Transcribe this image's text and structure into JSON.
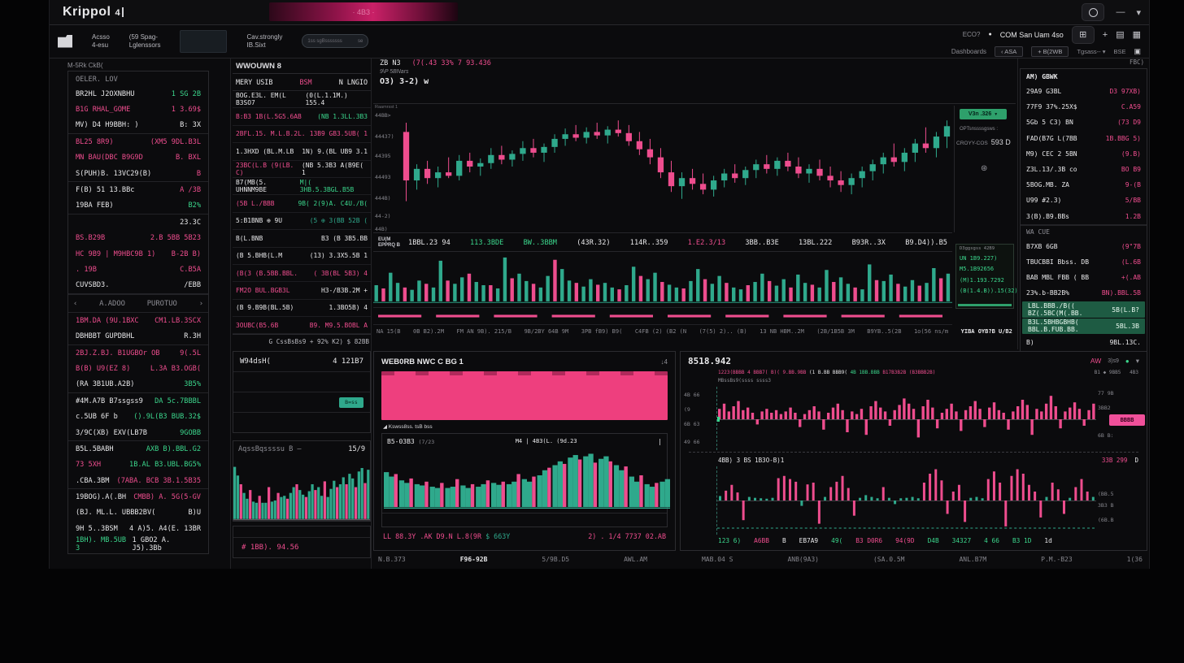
{
  "colors": {
    "pink": "#ee4d8e",
    "teal": "#2fa98c",
    "green": "#3bd68c",
    "white": "#e8e8ea",
    "gray": "#8d8d94",
    "green_tag_bg": "#2ea06b",
    "green_row_bg": "#1e5b43",
    "pink_block": "#ee3f7e"
  },
  "topbar": {
    "logo": "Krippol",
    "logo_badge": "4",
    "banner_text": "· 4B3 ·",
    "window_minimize": "—",
    "window_chevron": "▾"
  },
  "toolbar": {
    "items": [
      {
        "l1": "Acsso",
        "l2": "4-esu"
      },
      {
        "l1": "(59 Spag-",
        "l2": "Lglenssors"
      },
      {
        "l1": "Cav.strongly",
        "l2": "IB.Sixt"
      }
    ],
    "pill_text": "1ss sgBsssssss",
    "pill_right": "se",
    "right_row1": {
      "label_dim": "ECO?",
      "dot": "●",
      "label": "COM San Uam 4so",
      "icons": [
        "⊞",
        "+",
        "▤",
        "▦"
      ]
    },
    "right_row2": {
      "label": "Dashboards",
      "buttons": [
        "‹ ASA",
        "+ B(2WB"
      ],
      "dropdown": "Tgsass--",
      "dropdown_icon": "▾",
      "extra": "BSE",
      "icon": "▣"
    }
  },
  "watchlist": {
    "header": "M-5Rk CkB(",
    "panel_title": "OELER. LOV",
    "rows": [
      {
        "l": "BR2HL J2OXNBHU",
        "lc": "w",
        "v": "1 SG 2B",
        "vc": "g"
      },
      {
        "l": "B1G RHAL_GOME",
        "lc": "p",
        "v": "1 3.69$",
        "vc": "p"
      },
      {
        "l": "MV) D4 H9BBH: )",
        "lc": "w",
        "v": "B: 3X",
        "vc": "w",
        "div": true
      },
      {
        "l": "BL25 8R9)",
        "lc": "p",
        "v": "(XM5 9DL.B3L",
        "vc": "p"
      },
      {
        "l": "MN BAU(DBC B9G9D",
        "lc": "p",
        "v": "B. BXL",
        "vc": "p"
      },
      {
        "l": "S(PUH)B. 13VC29(B)",
        "lc": "w",
        "v": "B",
        "vc": "p",
        "div": true
      },
      {
        "l": "F(B) 51 13.BBc",
        "lc": "w",
        "v": "A /3B",
        "vc": "p"
      },
      {
        "l": "19BA FEB)",
        "lc": "w",
        "v": "B2%",
        "vc": "g",
        "div": true
      },
      {
        "l": "",
        "lc": "w",
        "v": "23.3C",
        "vc": "w"
      },
      {
        "l": "BS.B29B",
        "lc": "p",
        "v": "2.B 5BB 5B23",
        "vc": "p"
      },
      {
        "l": "HC 9B9 | M9HBC9B 1)",
        "lc": "p",
        "v": "B-2B B)",
        "vc": "p"
      },
      {
        "l": ". 19B",
        "lc": "p",
        "v": "C.B5A",
        "vc": "p"
      },
      {
        "l": "CUVSBD3.",
        "lc": "w",
        "v": "/EBB",
        "vc": "w",
        "div": true
      },
      {
        "section": [
          "A.ADOO",
          "PUROTUO"
        ]
      },
      {
        "l": "1BM.DA (9U.1BXC",
        "lc": "p",
        "v": "CM1.LB.3SCX",
        "vc": "p"
      },
      {
        "l": "DBHBBT GUPDBHL",
        "lc": "w",
        "v": "R.3H",
        "vc": "w",
        "div": true
      },
      {
        "l": "2BJ.Z.BJ. B1UGBOr OB",
        "lc": "p",
        "v": "9(.5L",
        "vc": "p"
      },
      {
        "l": "B(B) U9(EZ 8)",
        "lc": "p",
        "v": "L.3A B3.OGB(",
        "vc": "p"
      },
      {
        "l": "(RA 3B1UB.A2B)",
        "lc": "w",
        "v": "3B5%",
        "vc": "g",
        "div": true
      },
      {
        "l": "#4M.A7B B7ssgss9",
        "lc": "w",
        "v": "DA 5c.7BBBL",
        "vc": "g"
      },
      {
        "l": "c.5UB 6F b",
        "lc": "w",
        "v": "().9L(B3 BUB.32$",
        "vc": "g"
      },
      {
        "l": "3/9C(XB) EXV(LB7B",
        "lc": "w",
        "v": "9GOBB",
        "vc": "g",
        "div": true
      },
      {
        "l": "B5L.5BABH",
        "lc": "w",
        "v": "AXB B).BBL.G2",
        "vc": "g"
      },
      {
        "l": "73 5XH",
        "lc": "p",
        "v": "1B.AL B3.UBL.BG5%",
        "vc": "g"
      },
      {
        "l": ".CBA.3BM",
        "lc": "w",
        "v": "(7ABA. BCB 3B.1.5B35",
        "vc": "p",
        "div": true
      },
      {
        "l": "19BOG).A(.BH",
        "lc": "w",
        "v": "CMBB) A. 5G(5-GV",
        "vc": "p"
      },
      {
        "l": "(BJ. ML.L. UBBB2BV(",
        "lc": "w",
        "v": "B)U",
        "vc": "w"
      },
      {
        "l": "9H 5..3BSM",
        "lc": "w",
        "v": "4 A)5. A4(E. 13BR",
        "vc": "w"
      },
      {
        "l": "1BH). MB.5UB 3",
        "lc": "g",
        "v": "1 GBO2 A. J5).3Bb",
        "vc": "w"
      }
    ]
  },
  "orderbook": {
    "title": "WWOUWN 8",
    "col_header": {
      "left": "MERY USIB",
      "mid": "BSM",
      "right": "N LNGIO"
    },
    "rows": [
      {
        "l": "BOG.E3L. EM(L B3SO7",
        "lc": "w",
        "v": "(0(L.1.1M.) 155.4",
        "vc": "w"
      },
      {
        "l": "B:B3 1B(L.5G5.6AB",
        "lc": "p",
        "v": "(NB 1.3LL.3B3",
        "vc": "g"
      },
      {
        "l": "2BFL.15. M.L.B.2L.",
        "lc": "p",
        "v": "13B9 GB3.5UB( 1",
        "vc": "p"
      },
      {
        "l": "1.3HXD (BL.M.LB",
        "lc": "w",
        "v": "1N) 9.(BL UB9 3.1",
        "vc": "w"
      },
      {
        "l": "23BC(L.B (9(LB. C)",
        "lc": "p",
        "v": "(NB 5.3B3 A(B9E( 1",
        "vc": "w"
      },
      {
        "l": "B7(MB(5. UHNNM9BE",
        "lc": "w",
        "v": "M|( 3HB.5.3BGL.B5B",
        "vc": "g"
      },
      {
        "l": "(5B   L./BBB",
        "lc": "p",
        "v": "9B( 2(9)A. C4U./B(",
        "vc": "g"
      },
      {
        "l": "5:B1BNB ⊕ 9U",
        "lc": "w",
        "v": "(5 ⊕ 3(BB 52B (",
        "vc": "t"
      },
      {
        "l": "B(L.BNB",
        "lc": "w",
        "v": "B3 (B 3B5.BB",
        "vc": "w"
      },
      {
        "l": "(B 5.BHB(L.M",
        "lc": "w",
        "v": "(13) 3.3X5.5B 1",
        "vc": "w"
      },
      {
        "l": "(B(3 (B.5BB.BBL.",
        "lc": "p",
        "v": "( 3B(BL 5B3) 4",
        "vc": "p"
      },
      {
        "l": "FM2O BUL.BGB3L",
        "lc": "p",
        "v": "H3-/B3B.2M +",
        "vc": "w"
      },
      {
        "l": "(B 9.B9B(BL.5B)",
        "lc": "w",
        "v": "1.3BO5B) 4",
        "vc": "w"
      },
      {
        "l": "3OUBC(B5.6B",
        "lc": "p",
        "v": "B9. M9.5.BOBL A",
        "vc": "p"
      }
    ],
    "footnote": "G CssBsBs9 + 92% K2) $ 82BB"
  },
  "order_form": {
    "title": "W94dsH(",
    "title_value": "4 121B7",
    "button": "B=ss"
  },
  "depth_panel": {
    "title": "AqssBqssssu B –",
    "value": "15/9",
    "footer": "# 1BB). 94.56",
    "bars": [
      90,
      75,
      -60,
      45,
      35,
      -50,
      30,
      28,
      -40,
      28,
      28,
      -55,
      30,
      32,
      -45,
      38,
      40,
      -35,
      45,
      55,
      -60,
      50,
      42,
      -38,
      48,
      60,
      -50,
      55,
      40,
      -65,
      38,
      52,
      66,
      -55,
      60,
      72,
      -60,
      78,
      70,
      -55,
      82,
      88,
      -62,
      85
    ]
  },
  "main_chart": {
    "symbol": "ZB N3",
    "change_pink": "(7(.43 33%  7 93.436",
    "subtitle": "9\\P 5BNars",
    "ohlc": "O3)   3-2) w",
    "tool_label": "Raamrsst 1",
    "price_labels": [
      "44BB>",
      "44437)",
      "44395",
      "44493",
      "444B)",
      "44-2)",
      "44B)"
    ],
    "candles": [
      [
        80,
        88,
        20,
        38
      ],
      [
        38,
        52,
        30,
        48
      ],
      [
        48,
        55,
        35,
        40
      ],
      [
        40,
        50,
        32,
        45
      ],
      [
        45,
        58,
        40,
        42
      ],
      [
        42,
        60,
        38,
        55
      ],
      [
        55,
        62,
        45,
        50
      ],
      [
        50,
        57,
        42,
        53
      ],
      [
        53,
        66,
        48,
        60
      ],
      [
        60,
        68,
        52,
        56
      ],
      [
        56,
        64,
        50,
        61
      ],
      [
        61,
        72,
        55,
        66
      ],
      [
        66,
        74,
        58,
        62
      ],
      [
        62,
        70,
        54,
        67
      ],
      [
        67,
        78,
        62,
        74
      ],
      [
        74,
        83,
        68,
        78
      ],
      [
        78,
        86,
        72,
        75
      ],
      [
        75,
        84,
        70,
        80
      ],
      [
        80,
        88,
        74,
        77
      ],
      [
        77,
        85,
        70,
        82
      ],
      [
        82,
        90,
        76,
        79
      ],
      [
        79,
        86,
        68,
        72
      ],
      [
        72,
        80,
        60,
        65
      ],
      [
        65,
        74,
        52,
        58
      ],
      [
        58,
        66,
        40,
        45
      ],
      [
        45,
        55,
        28,
        33
      ],
      [
        33,
        45,
        22,
        40
      ],
      [
        40,
        48,
        30,
        35
      ],
      [
        35,
        44,
        26,
        30
      ],
      [
        30,
        42,
        24,
        38
      ],
      [
        38,
        48,
        32,
        44
      ],
      [
        44,
        52,
        36,
        40
      ],
      [
        40,
        50,
        34,
        47
      ],
      [
        47,
        56,
        40,
        52
      ],
      [
        52,
        60,
        44,
        48
      ],
      [
        48,
        58,
        42,
        55
      ],
      [
        55,
        62,
        46,
        50
      ],
      [
        50,
        58,
        40,
        44
      ],
      [
        44,
        52,
        36,
        48
      ],
      [
        48,
        56,
        38,
        42
      ],
      [
        42,
        50,
        32,
        38
      ],
      [
        38,
        46,
        28,
        34
      ],
      [
        34,
        44,
        26,
        40
      ],
      [
        40,
        50,
        32,
        46
      ],
      [
        46,
        56,
        38,
        52
      ],
      [
        52,
        62,
        44,
        58
      ],
      [
        58,
        70,
        50,
        54
      ],
      [
        54,
        66,
        46,
        62
      ],
      [
        62,
        74,
        54,
        70
      ],
      [
        70,
        84,
        62,
        66
      ],
      [
        66,
        80,
        58,
        76
      ],
      [
        76,
        90,
        66,
        85
      ]
    ],
    "scale": {
      "tag": "V3n .326",
      "tag_icon": "▼",
      "note1": "OPTsnssssgsws :",
      "note2": "CROYY-COS",
      "note2_value": "593 D",
      "icon": "⊛"
    },
    "stats": {
      "label1": "EU(M",
      "label2": "EPPRQ B",
      "values": [
        {
          "t": "1BBL.23 94",
          "c": "w"
        },
        {
          "t": "113.3BDE",
          "c": "g"
        },
        {
          "t": "BW..3BBM",
          "c": "g"
        },
        {
          "t": "(43R.32)",
          "c": "w"
        },
        {
          "t": "114R..359",
          "c": "w"
        },
        {
          "t": "1.E2.3/13",
          "c": "p"
        },
        {
          "t": "3BB..B3E",
          "c": "w"
        },
        {
          "t": "13BL.222",
          "c": "w"
        },
        {
          "t": "B93R..3X",
          "c": "w"
        },
        {
          "t": "B9.D4)).B5",
          "c": "w"
        }
      ]
    },
    "volume": {
      "bars": [
        35,
        -28,
        62,
        40,
        -30,
        25,
        45,
        -38,
        30,
        88,
        -45,
        38,
        52,
        -60,
        42,
        35,
        -35,
        28,
        95,
        -50,
        60,
        44,
        -38,
        30,
        55,
        -90,
        70,
        45,
        -40,
        32,
        48,
        -36,
        40,
        30,
        -26,
        35,
        75,
        -55,
        48,
        62,
        -42,
        36,
        30,
        -28,
        44,
        70,
        -48,
        38,
        55,
        -40,
        30,
        26,
        -35,
        42,
        60,
        -44,
        34,
        48,
        -30,
        58,
        40,
        -36,
        30,
        68,
        -42,
        52,
        38,
        -30,
        26,
        80,
        -46,
        44,
        58,
        -38,
        32,
        46,
        -34,
        40,
        72,
        -50,
        60
      ]
    },
    "volume_box": {
      "header": "D3ggsgss 42B9",
      "rows": [
        "UN 1B9.227)",
        "M5.1B92656",
        "(M)1.193.7292",
        "(B(1.4.B)).15(32)"
      ]
    },
    "signal": {
      "segments": 10
    },
    "x_labels": [
      "NA 15(B",
      "0B B2).2M",
      "FM AN 9B). 215/B",
      "9B/2BY 64B 9M",
      "3PB fB9) B9(",
      "C4FB (2) (B2 (N",
      "(7(5) 2).. (B)",
      "13 NB HBM..2M",
      "(2B/1B5B 3M",
      "B9YB..5(2B",
      "1o(56 ns/m",
      "YIBA OYB?B U/B2"
    ]
  },
  "right_panel": {
    "corner": "FBC)",
    "title": "AM) GBWK",
    "rows": [
      {
        "l": "29A9 G3BL",
        "v": "D3 97XB)"
      },
      {
        "l": "77F9 37%.25X$",
        "v": "C.A59"
      },
      {
        "l": "5Gb 5 C3) BN",
        "v": "(73 D9"
      },
      {
        "l": "FAD(B7G L(7BB",
        "v": "1B.BBG 5)"
      },
      {
        "l": "M9) CEC 2 5BN",
        "v": "(9.B)"
      },
      {
        "l": "Z3L.13/.3B co",
        "v": "BO B9"
      },
      {
        "l": "5BOG.MB. ZA",
        "v": "9-(B"
      },
      {
        "l": "U99 #2.3)",
        "v": "5/BB"
      },
      {
        "l": "3(B).B9.BBs",
        "v": "1.2B",
        "div": true
      },
      {
        "section": "WA CUE"
      },
      {
        "l": "B7XB 6GB",
        "v": "(9\"7B"
      },
      {
        "l": "TBUCBBI Bbss. DB",
        "v": "(L.6B"
      },
      {
        "l": "BAB MBL FBB ( BB",
        "v": "+(.AB"
      },
      {
        "l": "23%.b-BB2B%",
        "v": "BN).BBL.5B"
      },
      {
        "green": true,
        "l": "LBL.BBB./B(( BZ(.5BC(M(.BB.",
        "v": "5B(L.B?"
      },
      {
        "green": true,
        "l": "B3L.5BHBGBHB( BBL.B.FUB.BB.",
        "v": "5BL.3B"
      },
      {
        "l": "B)",
        "v": "9BL.13C.",
        "vc": "w"
      }
    ]
  },
  "bottom_middle": {
    "title": "WEB0RB NWC C BG 1",
    "corner": "↓4",
    "block_label": "◢ Kswss8ss. tsB bss",
    "sub": {
      "left1": "B5-03B3",
      "left2": "(7/23",
      "right": "M4 |  4B3(L.  (9d.23",
      "bar": "|",
      "bars": [
        55,
        48,
        -52,
        42,
        38,
        -45,
        36,
        34,
        -40,
        32,
        30,
        -38,
        30,
        32,
        -44,
        34,
        30,
        -36,
        32,
        36,
        -42,
        38,
        35,
        -40,
        36,
        40,
        -52,
        44,
        40,
        -48,
        50,
        58,
        -62,
        66,
        72,
        -68,
        78,
        82,
        -75,
        80,
        84,
        -70,
        76,
        80,
        -72,
        66,
        58,
        -64,
        48,
        40,
        -50,
        36,
        32,
        -38,
        40,
        44
      ]
    },
    "footer_left": "LL 88.3Y .AK D9.N L.8(9R",
    "footer_tag": "$ 663Y",
    "footer_right": "2) . 1/4 7737 02.AB"
  },
  "bottom_right": {
    "title": "8518.942",
    "corner": {
      "pink": "AW",
      "dim": "3)s9",
      "dot": "●",
      "chev": "▾"
    },
    "legend": [
      {
        "t": "1223(BBBB 4 BBB7( B)( 9.BB.9BB ",
        "c": "p"
      },
      {
        "t": "(1 B.BB BBB9( ",
        "c": "w"
      },
      {
        "t": "4B 1BB.BBB ",
        "c": "g"
      },
      {
        "t": "B17B3B2B (B3BBB2B)",
        "c": "p"
      }
    ],
    "legend_right": "B1  ◆  9BB5",
    "legend_far": "4B3",
    "legend2": "MBssBs9(ssss ssss3",
    "osc": {
      "left_labels": [
        "4B 66",
        "(9",
        "6B 63",
        "49 66"
      ],
      "right_labels": [
        "77 9B",
        "3BB2"
      ],
      "tag": "BBBB",
      "right_label_low": "6B B:",
      "bars": [
        8,
        12,
        6,
        10,
        14,
        7,
        9,
        5,
        -4,
        6,
        8,
        5,
        7,
        4,
        6,
        9,
        5,
        -6,
        4,
        7,
        10,
        6,
        -8,
        5,
        9,
        12,
        7,
        -10,
        6,
        4,
        8,
        -12,
        10,
        14,
        9,
        6,
        -5,
        7,
        11,
        16,
        12,
        8,
        -14,
        10,
        15,
        9,
        -7,
        5,
        8,
        12,
        6,
        -9,
        7,
        10,
        14,
        8,
        -6,
        9,
        13,
        7,
        5,
        -8,
        6,
        10,
        15,
        11,
        -12,
        8,
        6,
        12,
        18,
        10,
        -7,
        6,
        9,
        13,
        8,
        -5,
        7,
        12
      ]
    },
    "hist": {
      "header_left": "4BB) 3 BS 1B3O-B)1",
      "header_right": "33B  299",
      "header_icon": "D",
      "right_labels": [
        "(BB.5",
        "3B3 B",
        "(6B.B"
      ],
      "bars": [
        10,
        22,
        35,
        18,
        -44,
        8,
        6,
        5,
        4,
        6,
        50,
        55,
        48,
        42,
        -12,
        36,
        40,
        -52,
        8,
        30,
        42,
        55,
        28,
        -34,
        6,
        12,
        8,
        5,
        30,
        6,
        -8,
        5,
        6,
        8,
        5,
        40,
        60,
        70,
        45,
        -30,
        20,
        35,
        -48,
        6,
        8,
        5,
        48,
        65,
        40,
        -58,
        55,
        70,
        60,
        35,
        20,
        -38,
        8,
        40,
        25,
        -30,
        6,
        30,
        48,
        20,
        8
      ]
    },
    "footer": [
      {
        "t": "123 6)",
        "c": "g"
      },
      {
        "t": "A6BB",
        "c": "p"
      },
      {
        "t": "B",
        "c": "w"
      },
      {
        "t": "EB7A9",
        "c": "w"
      },
      {
        "t": "49(",
        "c": "g"
      },
      {
        "t": "B3 D0R6",
        "c": "p"
      },
      {
        "t": "94(9D",
        "c": "p"
      },
      {
        "t": "D4B",
        "c": "g"
      },
      {
        "t": "34327",
        "c": "g"
      },
      {
        "t": "4 66",
        "c": "g"
      },
      {
        "t": "B3 1D",
        "c": "g"
      },
      {
        "t": "1d",
        "c": "w"
      }
    ]
  },
  "bottom_axis": [
    "N.B.373",
    "F96-92B",
    "5/9B.D5",
    "AWL.AM",
    "MAB.04 S",
    "ANB(9A3)",
    "(SA.0.5M",
    "ANL.B7M",
    "P.M.-B23",
    "1(36"
  ]
}
